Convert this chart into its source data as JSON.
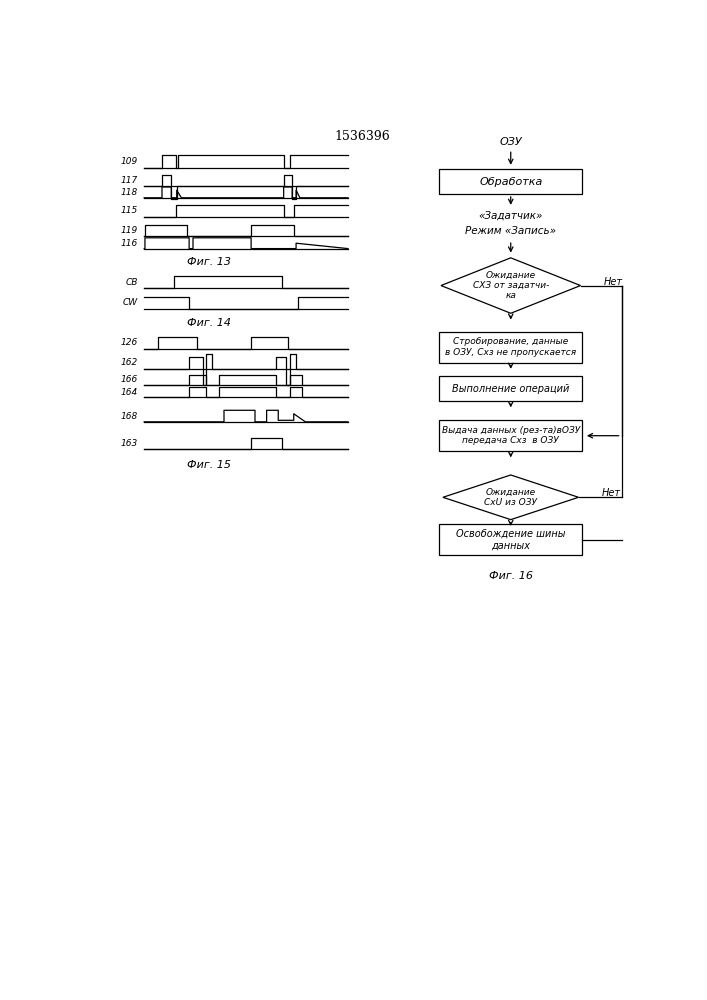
{
  "title": "1536396",
  "bg_color": "#ffffff",
  "line_color": "#000000",
  "fig13_label": "Фиг. 13",
  "fig14_label": "Фиг. 14",
  "fig15_label": "Фиг. 15",
  "fig16_label": "Фиг. 16",
  "flowchart": {
    "ozu_label": "ОЗУ",
    "obrabotka_label": "Обработка",
    "zadatchik_label": "«Задатчик»",
    "rezhim_label": "Режим «Запись»",
    "diamond1_label": "Ожидание\nСХЗ от задатчи-\nка",
    "net1_label": "Нет",
    "rect1_label": "Стробирование, данные\nв ОЗУ, Схз не пропускается",
    "rect2_label": "Выполнение операций",
    "rect3_label": "Выдача данных (рез-та)вОЗУ\nпередача Схз  в ОЗУ",
    "diamond2_label": "Ожидание\nСхU из ОЗУ",
    "net2_label": "Нет",
    "rect4_label": "Освобождение шины\nданных"
  }
}
